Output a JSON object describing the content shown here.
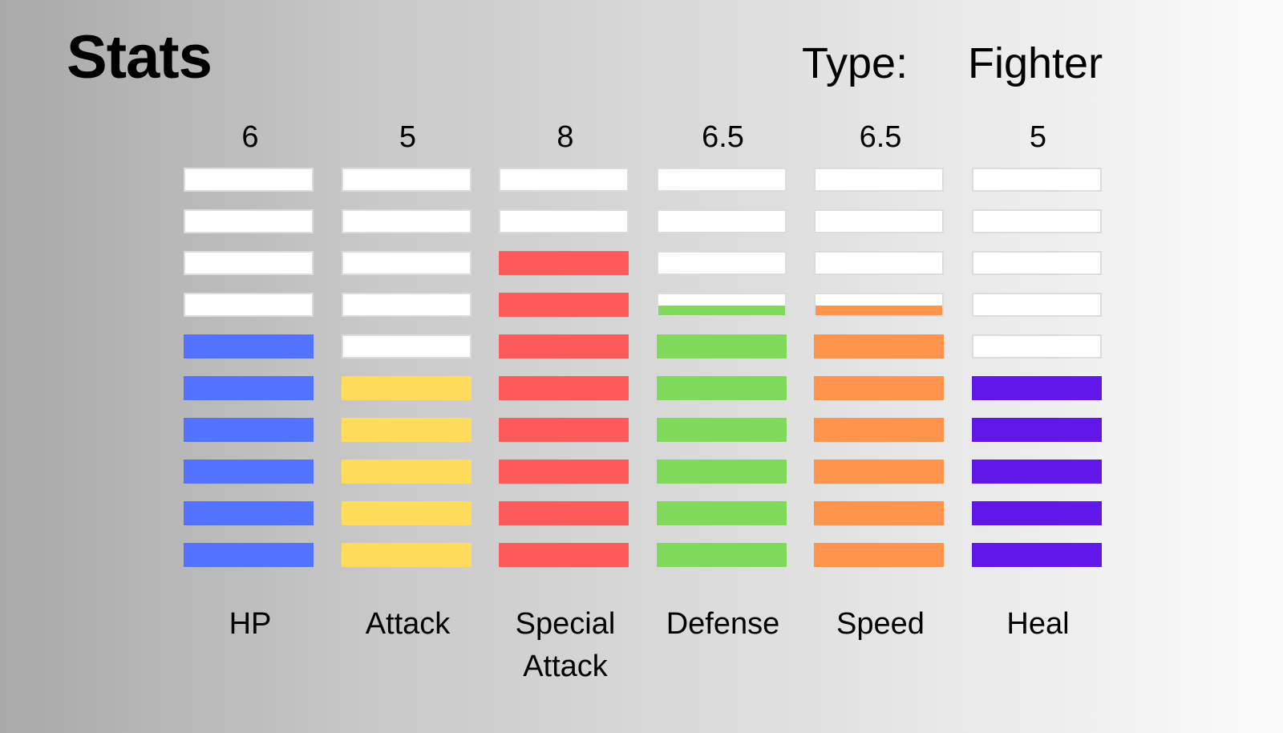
{
  "header": {
    "title": "Stats",
    "type_label": "Type:",
    "type_value": "Fighter"
  },
  "max_segments": 10,
  "stats": [
    {
      "label": "HP",
      "value": 6,
      "value_text": "6",
      "color": "#5272ff"
    },
    {
      "label": "Attack",
      "value": 5,
      "value_text": "5",
      "color": "#ffdd5a"
    },
    {
      "label": "Special Attack",
      "value": 8,
      "value_text": "8",
      "color": "#ff5a5a"
    },
    {
      "label": "Defense",
      "value": 6.5,
      "value_text": "6.5",
      "color": "#80d95a"
    },
    {
      "label": "Speed",
      "value": 6.5,
      "value_text": "6.5",
      "color": "#ff944c"
    },
    {
      "label": "Heal",
      "value": 5,
      "value_text": "5",
      "color": "#6017e8"
    }
  ]
}
